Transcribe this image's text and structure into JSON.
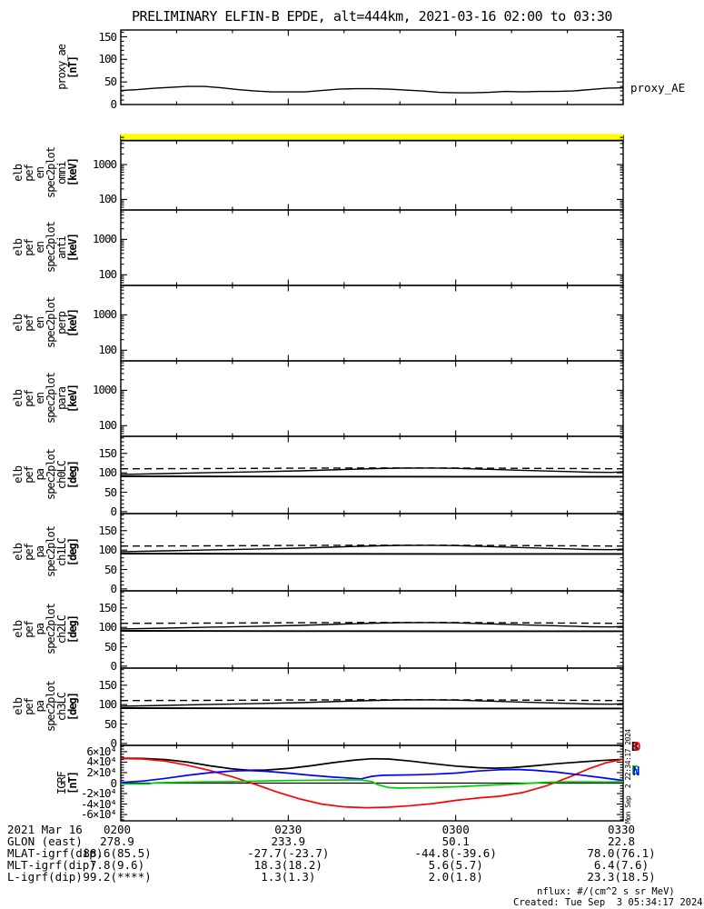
{
  "title": "PRELIMINARY ELFIN-B EPDE, alt=444km, 2021-03-16 02:00 to 03:30",
  "colors": {
    "background": "#ffffff",
    "axis": "#000000",
    "saturated_band": "#ffff00",
    "igrf_B": "#000000",
    "igrf_D": "#ff0000",
    "igrf_N": "#0000ff",
    "igrf_E": "#00d000"
  },
  "xaxis": {
    "tick_labels": [
      "0200",
      "0230",
      "0300",
      "0330"
    ],
    "minutes_span": 90,
    "minor_tick_minutes": 10,
    "date_label": "2021 Mar 16"
  },
  "panels": [
    {
      "id": "proxy",
      "label_lines": [
        "proxy_ae"
      ],
      "unit": "[nT]",
      "right_label": "proxy_AE",
      "ytick_labels": [
        {
          "v": 150,
          "t": "150"
        },
        {
          "v": 100,
          "t": "100"
        },
        {
          "v": 50,
          "t": "50"
        },
        {
          "v": 0,
          "t": "0"
        }
      ]
    },
    {
      "id": "omni",
      "label_lines": [
        "elb",
        "pef",
        "en",
        "spec2plot",
        "omni"
      ],
      "unit": "[keV]",
      "ytick_labels": [
        {
          "v": 1000,
          "t": "1000"
        },
        {
          "v": 100,
          "t": "100"
        }
      ]
    },
    {
      "id": "anti",
      "label_lines": [
        "elb",
        "pef",
        "en",
        "spec2plot",
        "anti"
      ],
      "unit": "[keV]",
      "ytick_labels": [
        {
          "v": 1000,
          "t": "1000"
        },
        {
          "v": 100,
          "t": "100"
        }
      ]
    },
    {
      "id": "perp",
      "label_lines": [
        "elb",
        "pef",
        "en",
        "spec2plot",
        "perp"
      ],
      "unit": "[keV]",
      "ytick_labels": [
        {
          "v": 1000,
          "t": "1000"
        },
        {
          "v": 100,
          "t": "100"
        }
      ]
    },
    {
      "id": "para",
      "label_lines": [
        "elb",
        "pef",
        "en",
        "spec2plot",
        "para"
      ],
      "unit": "[keV]",
      "ytick_labels": [
        {
          "v": 1000,
          "t": "1000"
        },
        {
          "v": 100,
          "t": "100"
        }
      ]
    },
    {
      "id": "ch0",
      "label_lines": [
        "elb",
        "pef",
        "pa",
        "spec2plot",
        "ch0LC"
      ],
      "unit": "[deg]",
      "ytick_labels": [
        {
          "v": 150,
          "t": "150"
        },
        {
          "v": 100,
          "t": "100"
        },
        {
          "v": 50,
          "t": "50"
        },
        {
          "v": 0,
          "t": "0"
        }
      ]
    },
    {
      "id": "ch1",
      "label_lines": [
        "elb",
        "pef",
        "pa",
        "spec2plot",
        "ch1LC"
      ],
      "unit": "[deg]",
      "ytick_labels": [
        {
          "v": 150,
          "t": "150"
        },
        {
          "v": 100,
          "t": "100"
        },
        {
          "v": 50,
          "t": "50"
        },
        {
          "v": 0,
          "t": "0"
        }
      ]
    },
    {
      "id": "ch2",
      "label_lines": [
        "elb",
        "pef",
        "pa",
        "spec2plot",
        "ch2LC"
      ],
      "unit": "[deg]",
      "ytick_labels": [
        {
          "v": 150,
          "t": "150"
        },
        {
          "v": 100,
          "t": "100"
        },
        {
          "v": 50,
          "t": "50"
        },
        {
          "v": 0,
          "t": "0"
        }
      ]
    },
    {
      "id": "ch3",
      "label_lines": [
        "elb",
        "pef",
        "pa",
        "spec2plot",
        "ch3LC"
      ],
      "unit": "[deg]",
      "ytick_labels": [
        {
          "v": 150,
          "t": "150"
        },
        {
          "v": 100,
          "t": "100"
        },
        {
          "v": 50,
          "t": "50"
        },
        {
          "v": 0,
          "t": "0"
        }
      ]
    },
    {
      "id": "igrf",
      "label_lines": [
        "IGRF"
      ],
      "unit": "[nT]",
      "ytick_labels": [
        {
          "v": 60000,
          "t": "6×10⁴"
        },
        {
          "v": 40000,
          "t": "4×10⁴"
        },
        {
          "v": 20000,
          "t": "2×10⁴"
        },
        {
          "v": 0,
          "t": "0"
        },
        {
          "v": -20000,
          "t": "-2×10⁴"
        },
        {
          "v": -40000,
          "t": "-4×10⁴"
        },
        {
          "v": -60000,
          "t": "-6×10⁴"
        }
      ]
    }
  ],
  "legend": [
    {
      "letter": "B",
      "color": "#000000"
    },
    {
      "letter": "D",
      "color": "#ff0000"
    },
    {
      "letter": "E",
      "color": "#00d000"
    },
    {
      "letter": "N",
      "color": "#0000ff"
    }
  ],
  "table": {
    "rows": [
      {
        "label": "2021 Mar 16",
        "values": [
          "0200",
          "0230",
          "0300",
          "0330"
        ]
      },
      {
        "label": "GLON (east)",
        "values": [
          "278.9",
          "233.9",
          "50.1",
          "22.8"
        ]
      },
      {
        "label": "MLAT-igrf(dip)",
        "values": [
          "88.6(85.5)",
          "-27.7(-23.7)",
          "-44.8(-39.6)",
          "78.0(76.1)"
        ]
      },
      {
        "label": "MLT-igrf(dip)",
        "values": [
          "7.8(9.6)",
          "18.3(18.2)",
          "5.6(5.7)",
          "6.4(7.6)"
        ]
      },
      {
        "label": "L-igrf(dip)",
        "values": [
          "99.2(****)",
          "1.3(1.3)",
          "2.0(1.8)",
          "23.3(18.5)"
        ]
      }
    ]
  },
  "footer": {
    "nflux": "nflux: #/(cm^2 s sr MeV)",
    "created": "Created: Tue Sep  3 05:34:17 2024"
  },
  "annotations": {
    "created_vertical": "Mon Sep  2 22:34:17 2024",
    "proxy_ae_right": "proxy_AE"
  },
  "chart_data": [
    {
      "type": "line",
      "panel_id": "proxy",
      "title": "proxy_AE",
      "ylabel": "proxy_ae [nT]",
      "yrange": [
        0,
        165
      ],
      "x_unit": "minutes after 2021-03-16 02:00 UT",
      "series": [
        {
          "name": "proxy_AE",
          "color": "#000000",
          "points": [
            [
              0,
              31
            ],
            [
              3,
              33
            ],
            [
              6,
              36
            ],
            [
              9,
              38
            ],
            [
              12,
              40
            ],
            [
              15,
              40
            ],
            [
              18,
              37
            ],
            [
              21,
              33
            ],
            [
              24,
              30
            ],
            [
              27,
              28
            ],
            [
              30,
              28
            ],
            [
              33,
              28
            ],
            [
              36,
              31
            ],
            [
              39,
              34
            ],
            [
              42,
              35
            ],
            [
              45,
              35
            ],
            [
              48,
              34
            ],
            [
              51,
              32
            ],
            [
              54,
              30
            ],
            [
              57,
              27
            ],
            [
              60,
              26
            ],
            [
              63,
              26
            ],
            [
              66,
              27
            ],
            [
              69,
              29
            ],
            [
              72,
              28
            ],
            [
              75,
              29
            ],
            [
              78,
              29
            ],
            [
              81,
              30
            ],
            [
              84,
              33
            ],
            [
              87,
              36
            ],
            [
              90,
              37
            ]
          ]
        }
      ]
    },
    {
      "type": "spectrogram",
      "panel_id": "omni",
      "ylabel": "elb pef en spec2plot omni [keV]",
      "yscale": "log",
      "yrange": [
        50,
        6800
      ],
      "content": "no flux data plotted (blank white); saturated yellow band across top energy bin",
      "band_color": "#ffff00"
    },
    {
      "type": "spectrogram",
      "panel_id": "anti",
      "ylabel": "elb pef en spec2plot anti [keV]",
      "yscale": "log",
      "yrange": [
        50,
        6800
      ],
      "content": "no flux data plotted (blank white)"
    },
    {
      "type": "spectrogram",
      "panel_id": "perp",
      "ylabel": "elb pef en spec2plot perp [keV]",
      "yscale": "log",
      "yrange": [
        50,
        6800
      ],
      "content": "no flux data plotted (blank white)"
    },
    {
      "type": "spectrogram",
      "panel_id": "para",
      "ylabel": "elb pef en spec2plot para [keV]",
      "yscale": "log",
      "yrange": [
        50,
        6800
      ],
      "content": "no flux data plotted (blank white)"
    },
    {
      "type": "line",
      "panel_id": [
        "ch0",
        "ch1",
        "ch2",
        "ch3"
      ],
      "ylabel": "elb pef pa spec2plot ch0LC-ch3LC [deg]",
      "yrange": [
        0,
        180
      ],
      "note": "same three pitch-angle boundary lines drawn in all four channel panels",
      "series": [
        {
          "name": "loss-cone boundary (solid, varying)",
          "color": "#000000",
          "points": [
            [
              0,
              96
            ],
            [
              8,
              98
            ],
            [
              16,
              100.5
            ],
            [
              24,
              102.5
            ],
            [
              32,
              105
            ],
            [
              40,
              108.5
            ],
            [
              46,
              111
            ],
            [
              50,
              112
            ],
            [
              55,
              112.3
            ],
            [
              60,
              111.5
            ],
            [
              66,
              109
            ],
            [
              72,
              106.5
            ],
            [
              78,
              104
            ],
            [
              84,
              101.5
            ],
            [
              88,
              101
            ],
            [
              90,
              102.5
            ]
          ]
        },
        {
          "name": "90-deg reference (solid, flat)",
          "color": "#000000",
          "points": [
            [
              0,
              91
            ],
            [
              30,
              90.3
            ],
            [
              60,
              90
            ],
            [
              90,
              90
            ]
          ]
        },
        {
          "name": "anti-loss-cone boundary (dashed)",
          "color": "#000000",
          "style": "dashed",
          "points": [
            [
              0,
              110.5
            ],
            [
              15,
              111
            ],
            [
              30,
              111.8
            ],
            [
              45,
              112.5
            ],
            [
              55,
              112.5
            ],
            [
              65,
              112
            ],
            [
              75,
              111.3
            ],
            [
              90,
              110.5
            ]
          ]
        }
      ]
    },
    {
      "type": "line",
      "panel_id": "igrf",
      "ylabel": "IGRF [nT]",
      "yrange": [
        -72000,
        72000
      ],
      "series": [
        {
          "name": "B",
          "color": "#000000",
          "points": [
            [
              0,
              47500
            ],
            [
              4,
              47200
            ],
            [
              8,
              45000
            ],
            [
              12,
              40000
            ],
            [
              16,
              33000
            ],
            [
              20,
              27000
            ],
            [
              23,
              24500
            ],
            [
              26,
              25000
            ],
            [
              30,
              28000
            ],
            [
              34,
              33000
            ],
            [
              38,
              39000
            ],
            [
              42,
              44000
            ],
            [
              45,
              46500
            ],
            [
              48,
              46000
            ],
            [
              52,
              42000
            ],
            [
              56,
              37000
            ],
            [
              60,
              32500
            ],
            [
              64,
              29500
            ],
            [
              67,
              28500
            ],
            [
              70,
              29500
            ],
            [
              74,
              33000
            ],
            [
              78,
              37000
            ],
            [
              82,
              40000
            ],
            [
              86,
              43000
            ],
            [
              90,
              45500
            ]
          ]
        },
        {
          "name": "D",
          "color": "#ff0000",
          "points": [
            [
              0,
              47000
            ],
            [
              4,
              46000
            ],
            [
              8,
              42000
            ],
            [
              12,
              34000
            ],
            [
              16,
              24000
            ],
            [
              20,
              12000
            ],
            [
              24,
              -2000
            ],
            [
              28,
              -17000
            ],
            [
              32,
              -30000
            ],
            [
              36,
              -40000
            ],
            [
              40,
              -45500
            ],
            [
              44,
              -47000
            ],
            [
              48,
              -46000
            ],
            [
              52,
              -43000
            ],
            [
              56,
              -39000
            ],
            [
              60,
              -33000
            ],
            [
              64,
              -28500
            ],
            [
              68,
              -25000
            ],
            [
              72,
              -18000
            ],
            [
              76,
              -6000
            ],
            [
              80,
              10000
            ],
            [
              84,
              28000
            ],
            [
              87,
              39000
            ],
            [
              90,
              45500
            ]
          ]
        },
        {
          "name": "N",
          "color": "#0000ff",
          "points": [
            [
              0,
              1000
            ],
            [
              4,
              4000
            ],
            [
              8,
              9000
            ],
            [
              12,
              15000
            ],
            [
              16,
              20000
            ],
            [
              20,
              23000
            ],
            [
              23,
              24000
            ],
            [
              26,
              22500
            ],
            [
              30,
              19000
            ],
            [
              34,
              15000
            ],
            [
              38,
              11500
            ],
            [
              41,
              9500
            ],
            [
              43,
              8000
            ],
            [
              45,
              13000
            ],
            [
              47,
              15000
            ],
            [
              50,
              15500
            ],
            [
              53,
              16000
            ],
            [
              56,
              17000
            ],
            [
              60,
              19000
            ],
            [
              64,
              23000
            ],
            [
              68,
              25500
            ],
            [
              71,
              26000
            ],
            [
              74,
              24500
            ],
            [
              78,
              21000
            ],
            [
              82,
              16000
            ],
            [
              86,
              10500
            ],
            [
              90,
              5000
            ]
          ]
        },
        {
          "name": "E",
          "color": "#00d000",
          "points": [
            [
              0,
              -1500
            ],
            [
              5,
              -1500
            ],
            [
              6,
              500
            ],
            [
              10,
              1500
            ],
            [
              15,
              2500
            ],
            [
              20,
              3000
            ],
            [
              25,
              4000
            ],
            [
              30,
              5000
            ],
            [
              35,
              5500
            ],
            [
              40,
              6000
            ],
            [
              43,
              6000
            ],
            [
              45,
              3000
            ],
            [
              46,
              -3000
            ],
            [
              48,
              -8500
            ],
            [
              50,
              -9500
            ],
            [
              53,
              -9000
            ],
            [
              56,
              -8500
            ],
            [
              60,
              -7000
            ],
            [
              64,
              -5000
            ],
            [
              68,
              -3000
            ],
            [
              72,
              -1000
            ],
            [
              76,
              1500
            ],
            [
              80,
              2500
            ],
            [
              84,
              2500
            ],
            [
              87,
              2000
            ],
            [
              90,
              3000
            ]
          ]
        }
      ]
    }
  ]
}
